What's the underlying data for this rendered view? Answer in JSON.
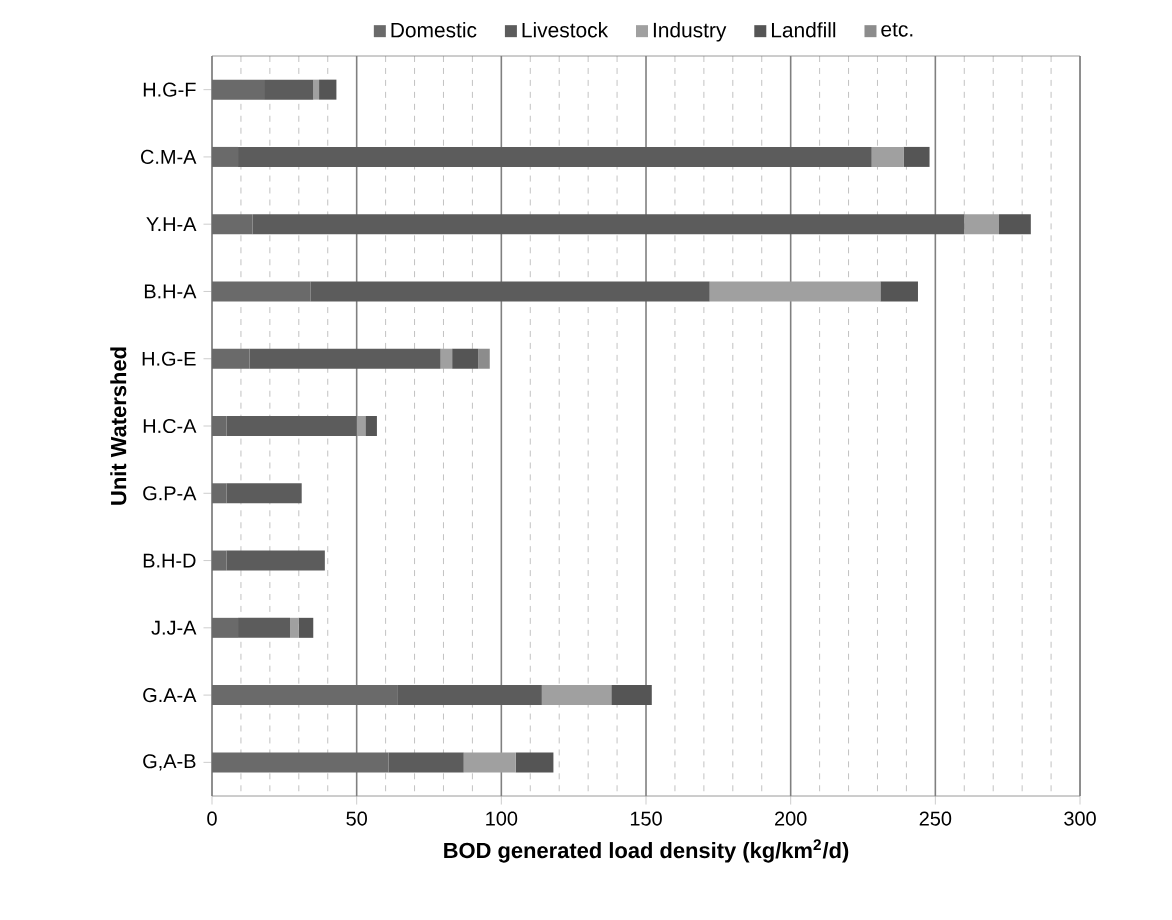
{
  "chart_data": {
    "type": "bar",
    "orientation": "horizontal",
    "stacked": true,
    "xlabel": "BOD generated load density (kg/km$^{2}$/d)",
    "ylabel": "Unit Watershed",
    "categories": [
      "H.G-F",
      "C.M-A",
      "Y.H-A",
      "B.H-A",
      "H.G-E",
      "H.C-A",
      "G.P-A",
      "B.H-D",
      "J.J-A",
      "G.A-A",
      "G,A-B"
    ],
    "series": [
      {
        "name": "Domestic",
        "color": "#6a6a6a",
        "values": [
          18,
          9,
          14,
          34,
          13,
          5,
          5,
          5,
          9,
          64,
          61
        ]
      },
      {
        "name": "Livestock",
        "color": "#5c5c5c",
        "values": [
          17,
          219,
          246,
          138,
          66,
          45,
          26,
          34,
          18,
          50,
          26
        ]
      },
      {
        "name": "Industry",
        "color": "#a0a0a0",
        "values": [
          2,
          11,
          12,
          59,
          4,
          3,
          0,
          0,
          3,
          24,
          18
        ]
      },
      {
        "name": "Landfill",
        "color": "#555555",
        "values": [
          6,
          9,
          11,
          13,
          9,
          4,
          0,
          0,
          5,
          14,
          13
        ]
      },
      {
        "name": "etc.",
        "color": "#8c8c8c",
        "values": [
          0,
          0,
          0,
          0,
          4,
          0,
          0,
          0,
          0,
          0,
          0
        ]
      }
    ],
    "xlim": [
      0,
      300
    ],
    "xticks": [
      0,
      50,
      100,
      150,
      200,
      250,
      300
    ],
    "grid": "x",
    "legend": "top"
  }
}
